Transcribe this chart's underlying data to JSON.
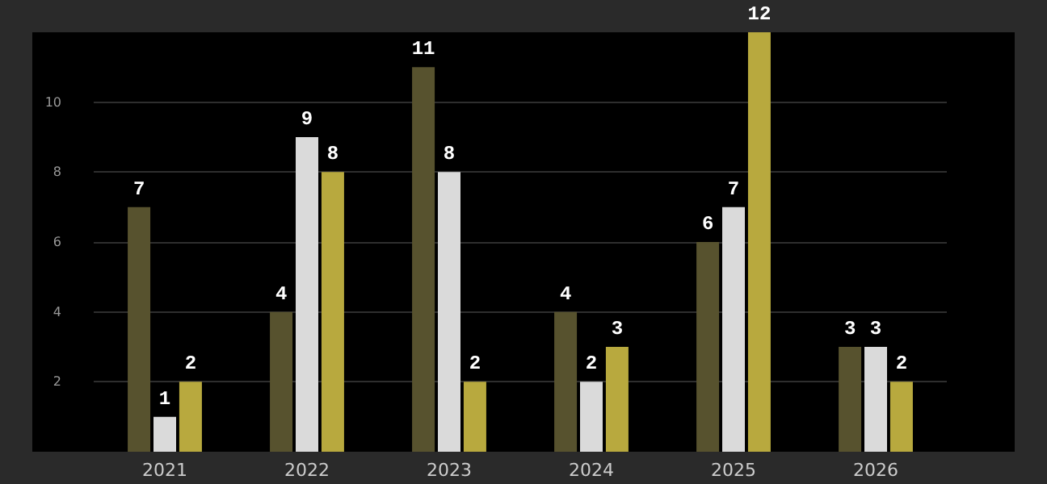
{
  "chart_data": {
    "type": "bar",
    "categories": [
      "2021",
      "2022",
      "2023",
      "2024",
      "2025",
      "2026"
    ],
    "series": [
      {
        "color": "#57522e",
        "values": [
          7,
          4,
          11,
          4,
          6,
          3
        ]
      },
      {
        "color": "#dadada",
        "values": [
          1,
          9,
          8,
          2,
          7,
          3
        ]
      },
      {
        "color": "#b8a93e",
        "values": [
          2,
          8,
          2,
          3,
          12,
          2
        ]
      }
    ],
    "ylim": [
      0,
      12
    ],
    "yticks": [
      2,
      4,
      6,
      8,
      10
    ],
    "grid": "y",
    "data_labels": true
  }
}
